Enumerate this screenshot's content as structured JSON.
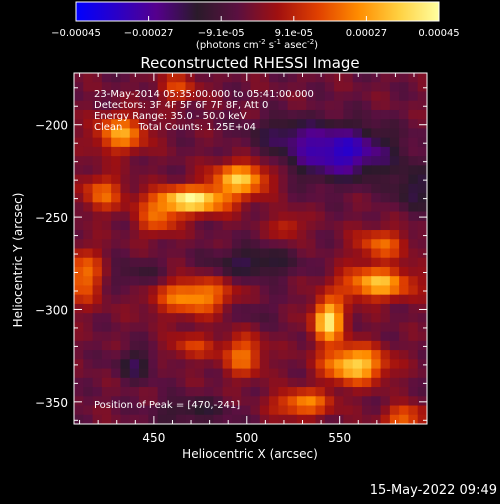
{
  "colorbar": {
    "ticks": [
      "-0.00045",
      "-0.00027",
      "-9.1e-05",
      "9.1e-05",
      "0.00027",
      "0.00045"
    ],
    "unit_label": "(photons cm",
    "unit_sup1": "-2",
    "unit_mid1": " s",
    "unit_sup2": "-1",
    "unit_mid2": " asec",
    "unit_sup3": "-2",
    "unit_end": ")",
    "colormap": [
      "#0000ff",
      "#2a00c8",
      "#55008c",
      "#2a1a2a",
      "#5a1040",
      "#a01010",
      "#e04000",
      "#ff8c00",
      "#ffd040",
      "#ffffa0"
    ]
  },
  "chart_data": {
    "type": "heatmap",
    "title": "Reconstructed RHESSI Image",
    "xlabel": "Heliocentric X (arcsec)",
    "ylabel": "Heliocentric Y (arcsec)",
    "xlim": [
      407,
      597
    ],
    "ylim": [
      -362,
      -172
    ],
    "xticks": [
      450,
      500,
      550
    ],
    "yticks": [
      -200,
      -250,
      -300,
      -350
    ],
    "ytick_labels": [
      "−200",
      "−250",
      "−300",
      "−350"
    ],
    "vrange": [
      -0.00045,
      0.00045
    ],
    "annotations": [
      "23-May-2014 05:35:00.000 to 05:41:00.000",
      "Detectors: 3F 4F 5F 6F 7F 8F, Att 0",
      "Energy Range: 35.0 - 50.0 keV",
      "Clean     Total Counts: 1.25E+04"
    ],
    "peak_label": "Position of Peak = [470,-241]",
    "blobs": [
      {
        "x": 432,
        "y": -205,
        "sx": 10,
        "sy": 7,
        "v": 0.0003
      },
      {
        "x": 470,
        "y": -241,
        "sx": 15,
        "sy": 5,
        "v": 0.00045
      },
      {
        "x": 497,
        "y": -229,
        "sx": 11,
        "sy": 6,
        "v": 0.00037
      },
      {
        "x": 452,
        "y": -252,
        "sx": 8,
        "sy": 6,
        "v": 0.0002
      },
      {
        "x": 422,
        "y": -237,
        "sx": 8,
        "sy": 7,
        "v": 0.00022
      },
      {
        "x": 412,
        "y": -282,
        "sx": 8,
        "sy": 10,
        "v": 0.00025
      },
      {
        "x": 472,
        "y": -293,
        "sx": 16,
        "sy": 7,
        "v": 0.0003
      },
      {
        "x": 498,
        "y": -325,
        "sx": 8,
        "sy": 8,
        "v": 0.00024
      },
      {
        "x": 470,
        "y": -320,
        "sx": 9,
        "sy": 5,
        "v": 0.00016
      },
      {
        "x": 544,
        "y": -306,
        "sx": 6,
        "sy": 8,
        "v": 0.00044
      },
      {
        "x": 570,
        "y": -286,
        "sx": 14,
        "sy": 6,
        "v": 0.00035
      },
      {
        "x": 558,
        "y": -330,
        "sx": 12,
        "sy": 7,
        "v": 0.0004
      },
      {
        "x": 530,
        "y": -351,
        "sx": 11,
        "sy": 5,
        "v": 0.00028
      },
      {
        "x": 572,
        "y": -265,
        "sx": 10,
        "sy": 6,
        "v": 0.00022
      },
      {
        "x": 585,
        "y": -358,
        "sx": 8,
        "sy": 4,
        "v": 0.00025
      },
      {
        "x": 522,
        "y": -255,
        "sx": 6,
        "sy": 5,
        "v": 0.00015
      },
      {
        "x": 463,
        "y": -180,
        "sx": 8,
        "sy": 6,
        "v": 0.00016
      },
      {
        "x": 440,
        "y": -330,
        "sx": 7,
        "sy": 6,
        "v": -0.00015
      },
      {
        "x": 550,
        "y": -215,
        "sx": 20,
        "sy": 10,
        "v": -0.00032
      },
      {
        "x": 520,
        "y": -205,
        "sx": 14,
        "sy": 6,
        "v": -0.00012
      },
      {
        "x": 503,
        "y": -275,
        "sx": 16,
        "sy": 6,
        "v": -0.00016
      },
      {
        "x": 440,
        "y": -282,
        "sx": 12,
        "sy": 6,
        "v": -0.0001
      },
      {
        "x": 590,
        "y": -235,
        "sx": 8,
        "sy": 8,
        "v": -0.00015
      },
      {
        "x": 470,
        "y": -355,
        "sx": 14,
        "sy": 5,
        "v": -0.00012
      },
      {
        "x": 500,
        "y": -300,
        "sx": 10,
        "sy": 6,
        "v": -8e-05
      }
    ]
  },
  "footer": {
    "timestamp": "15-May-2022 09:49"
  }
}
